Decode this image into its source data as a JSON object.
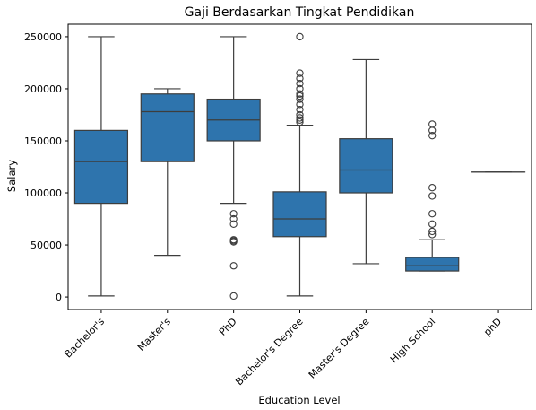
{
  "chart_data": {
    "type": "box",
    "title": "Gaji Berdasarkan Tingkat Pendidikan",
    "xlabel": "Education Level",
    "ylabel": "Salary",
    "ylim": [
      -12000,
      262000
    ],
    "yticks": [
      0,
      50000,
      100000,
      150000,
      200000,
      250000
    ],
    "grid": false,
    "colors": {
      "box": "#2e74ad",
      "line": "#3d3d3d",
      "axis": "#000000"
    },
    "categories": [
      "Bachelor's",
      "Master's",
      "PhD",
      "Bachelor's Degree",
      "Master's Degree",
      "High School",
      "phD"
    ],
    "boxes": [
      {
        "category": "Bachelor's",
        "whisker_low": 1000,
        "q1": 90000,
        "median": 130000,
        "q3": 160000,
        "whisker_high": 250000,
        "outliers": []
      },
      {
        "category": "Master's",
        "whisker_low": 40000,
        "q1": 130000,
        "median": 178000,
        "q3": 195000,
        "whisker_high": 200000,
        "outliers": []
      },
      {
        "category": "PhD",
        "whisker_low": 90000,
        "q1": 150000,
        "median": 170000,
        "q3": 190000,
        "whisker_high": 250000,
        "outliers": [
          80000,
          75000,
          70000,
          55000,
          54000,
          53000,
          30000,
          1000
        ]
      },
      {
        "category": "Bachelor's Degree",
        "whisker_low": 1000,
        "q1": 58000,
        "median": 75000,
        "q3": 101000,
        "whisker_high": 165000,
        "outliers": [
          168000,
          170000,
          172000,
          175000,
          180000,
          185000,
          190000,
          193000,
          195000,
          200000,
          205000,
          210000,
          215000,
          250000
        ]
      },
      {
        "category": "Master's Degree",
        "whisker_low": 32000,
        "q1": 100000,
        "median": 122000,
        "q3": 152000,
        "whisker_high": 228000,
        "outliers": []
      },
      {
        "category": "High School",
        "whisker_low": 25000,
        "q1": 25000,
        "median": 30000,
        "q3": 38000,
        "whisker_high": 55000,
        "outliers": [
          60000,
          63000,
          70000,
          80000,
          97000,
          105000,
          155000,
          160000,
          166000
        ]
      },
      {
        "category": "phD",
        "whisker_low": 120000,
        "q1": 120000,
        "median": 120000,
        "q3": 120000,
        "whisker_high": 120000,
        "outliers": []
      }
    ]
  }
}
